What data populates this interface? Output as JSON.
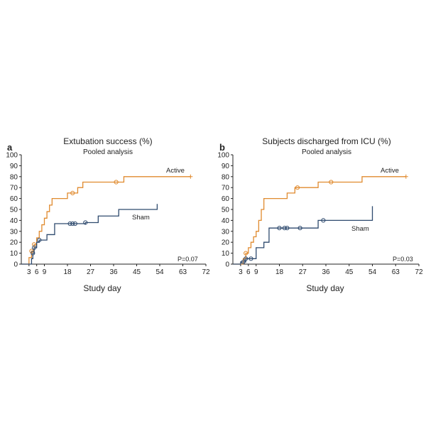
{
  "colors": {
    "active": "#e08a2e",
    "sham": "#2e4a6e",
    "axis": "#222222"
  },
  "chart_data": [
    {
      "type": "line",
      "step": true,
      "panel": "a",
      "title": "Extubation success (%)",
      "subtitle": "Pooled analysis",
      "xlabel": "Study day",
      "ylabel": "",
      "xlim": [
        0,
        72
      ],
      "ylim": [
        0,
        100
      ],
      "xticks": [
        3,
        6,
        9,
        18,
        27,
        36,
        45,
        54,
        63,
        72
      ],
      "yticks": [
        0,
        10,
        20,
        30,
        40,
        50,
        60,
        70,
        80,
        90,
        100
      ],
      "annotation": "P=0.07",
      "series": [
        {
          "name": "Active",
          "color": "#e08a2e",
          "points": [
            [
              0,
              0
            ],
            [
              3,
              0
            ],
            [
              3,
              6
            ],
            [
              4,
              6
            ],
            [
              4,
              12
            ],
            [
              5,
              12
            ],
            [
              5,
              18
            ],
            [
              6,
              18
            ],
            [
              6,
              24
            ],
            [
              7,
              24
            ],
            [
              7,
              30
            ],
            [
              8,
              30
            ],
            [
              8,
              36
            ],
            [
              9,
              36
            ],
            [
              9,
              42
            ],
            [
              10,
              42
            ],
            [
              10,
              48
            ],
            [
              11,
              48
            ],
            [
              11,
              54
            ],
            [
              12,
              54
            ],
            [
              12,
              60
            ],
            [
              18,
              60
            ],
            [
              18,
              65
            ],
            [
              22,
              65
            ],
            [
              22,
              70
            ],
            [
              24,
              70
            ],
            [
              24,
              75
            ],
            [
              40,
              75
            ],
            [
              40,
              80
            ],
            [
              66,
              80
            ]
          ],
          "censored_x": [
            4,
            5,
            20,
            37
          ],
          "end_mark_x": 66
        },
        {
          "name": "Sham",
          "color": "#2e4a6e",
          "points": [
            [
              0,
              0
            ],
            [
              4,
              0
            ],
            [
              4,
              5
            ],
            [
              4.5,
              5
            ],
            [
              4.5,
              10
            ],
            [
              5,
              10
            ],
            [
              5,
              15
            ],
            [
              6,
              15
            ],
            [
              6,
              20
            ],
            [
              7,
              20
            ],
            [
              7,
              22
            ],
            [
              10,
              22
            ],
            [
              10,
              27
            ],
            [
              13,
              27
            ],
            [
              13,
              37
            ],
            [
              25,
              37
            ],
            [
              25,
              38
            ],
            [
              30,
              38
            ],
            [
              30,
              44
            ],
            [
              38,
              44
            ],
            [
              38,
              50
            ],
            [
              53,
              50
            ],
            [
              53,
              55
            ]
          ],
          "censored_x": [
            4.5,
            5,
            7,
            19,
            20,
            21,
            25
          ],
          "end_mark_x": null
        }
      ]
    },
    {
      "type": "line",
      "step": true,
      "panel": "b",
      "title": "Subjects discharged from ICU (%)",
      "subtitle": "Pooled analysis",
      "xlabel": "Study day",
      "ylabel": "",
      "xlim": [
        0,
        72
      ],
      "ylim": [
        0,
        100
      ],
      "xticks": [
        3,
        6,
        9,
        18,
        27,
        36,
        45,
        54,
        63,
        72
      ],
      "yticks": [
        0,
        10,
        20,
        30,
        40,
        50,
        60,
        70,
        80,
        90,
        100
      ],
      "annotation": "P=0.03",
      "series": [
        {
          "name": "Active",
          "color": "#e08a2e",
          "points": [
            [
              0,
              0
            ],
            [
              4,
              0
            ],
            [
              4,
              5
            ],
            [
              5,
              5
            ],
            [
              5,
              10
            ],
            [
              6,
              10
            ],
            [
              6,
              15
            ],
            [
              7,
              15
            ],
            [
              7,
              20
            ],
            [
              8,
              20
            ],
            [
              8,
              25
            ],
            [
              9,
              25
            ],
            [
              9,
              30
            ],
            [
              10,
              30
            ],
            [
              10,
              40
            ],
            [
              11,
              40
            ],
            [
              11,
              50
            ],
            [
              12,
              50
            ],
            [
              12,
              60
            ],
            [
              21,
              60
            ],
            [
              21,
              65
            ],
            [
              24,
              65
            ],
            [
              24,
              70
            ],
            [
              33,
              70
            ],
            [
              33,
              75
            ],
            [
              50,
              75
            ],
            [
              50,
              80
            ],
            [
              67,
              80
            ]
          ],
          "censored_x": [
            5,
            25,
            38
          ],
          "end_mark_x": 67
        },
        {
          "name": "Sham",
          "color": "#2e4a6e",
          "points": [
            [
              0,
              0
            ],
            [
              3,
              0
            ],
            [
              3,
              2
            ],
            [
              5,
              2
            ],
            [
              5,
              5
            ],
            [
              9,
              5
            ],
            [
              9,
              15
            ],
            [
              12,
              15
            ],
            [
              12,
              20
            ],
            [
              14,
              20
            ],
            [
              14,
              33
            ],
            [
              33,
              33
            ],
            [
              33,
              40
            ],
            [
              54,
              40
            ],
            [
              54,
              53
            ]
          ],
          "censored_x": [
            4,
            5,
            7,
            18,
            20,
            21,
            26,
            35
          ],
          "end_mark_x": null
        }
      ]
    }
  ]
}
